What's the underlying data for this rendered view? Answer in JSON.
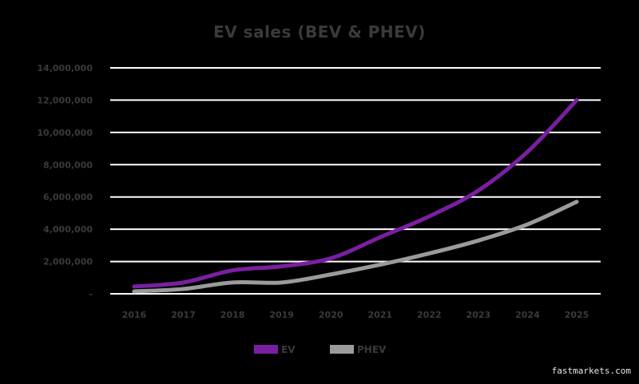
{
  "chart_data": {
    "type": "line",
    "title": "EV sales (BEV & PHEV)",
    "xlabel": "",
    "ylabel": "",
    "categories": [
      "2016",
      "2017",
      "2018",
      "2019",
      "2020",
      "2021",
      "2022",
      "2023",
      "2024",
      "2025"
    ],
    "ylim": [
      0,
      14000000
    ],
    "yticks": [
      0,
      2000000,
      4000000,
      6000000,
      8000000,
      10000000,
      12000000,
      14000000
    ],
    "ytick_labels": [
      "-",
      "2,000,000",
      "4,000,000",
      "6,000,000",
      "8,000,000",
      "10,000,000",
      "12,000,000",
      "14,000,000"
    ],
    "grid": true,
    "legend_position": "bottom",
    "series": [
      {
        "name": "EV",
        "color": "#7a1fa2",
        "values": [
          450000,
          700000,
          1450000,
          1700000,
          2200000,
          3500000,
          4800000,
          6400000,
          8800000,
          12000000
        ]
      },
      {
        "name": "PHEV",
        "color": "#9b9b9b",
        "values": [
          150000,
          300000,
          700000,
          700000,
          1200000,
          1800000,
          2500000,
          3300000,
          4300000,
          5700000
        ]
      }
    ]
  },
  "credit": "fastmarkets.com"
}
